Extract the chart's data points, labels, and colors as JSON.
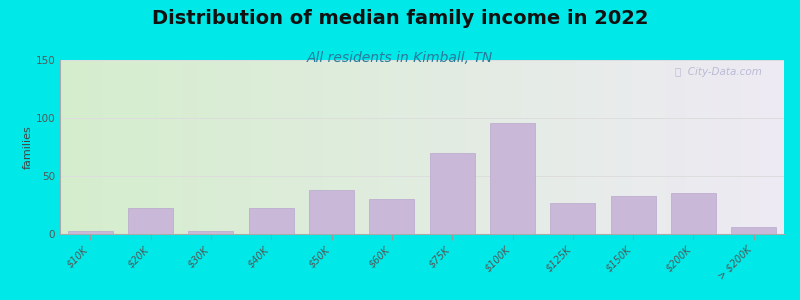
{
  "title": "Distribution of median family income in 2022",
  "subtitle": "All residents in Kimball, TN",
  "ylabel": "families",
  "categories": [
    "$10K",
    "$20K",
    "$30K",
    "$40K",
    "$50K",
    "$60K",
    "$75K",
    "$100K",
    "$125K",
    "$150K",
    "$200K",
    "> $200K"
  ],
  "values": [
    3,
    22,
    3,
    22,
    38,
    30,
    70,
    96,
    27,
    33,
    35,
    6
  ],
  "bar_color": "#c9b8d8",
  "bar_edge_color": "#b8a8cc",
  "ylim": [
    0,
    150
  ],
  "yticks": [
    0,
    50,
    100,
    150
  ],
  "background_outer": "#00e8e8",
  "bg_left": "#d4edcc",
  "bg_right": "#eeeaf4",
  "title_fontsize": 14,
  "subtitle_fontsize": 10,
  "subtitle_color": "#2a7a9a",
  "ylabel_fontsize": 8,
  "watermark_text": "ⓘ  City-Data.com",
  "grid_color": "#dddddd",
  "tick_label_color": "#555555"
}
